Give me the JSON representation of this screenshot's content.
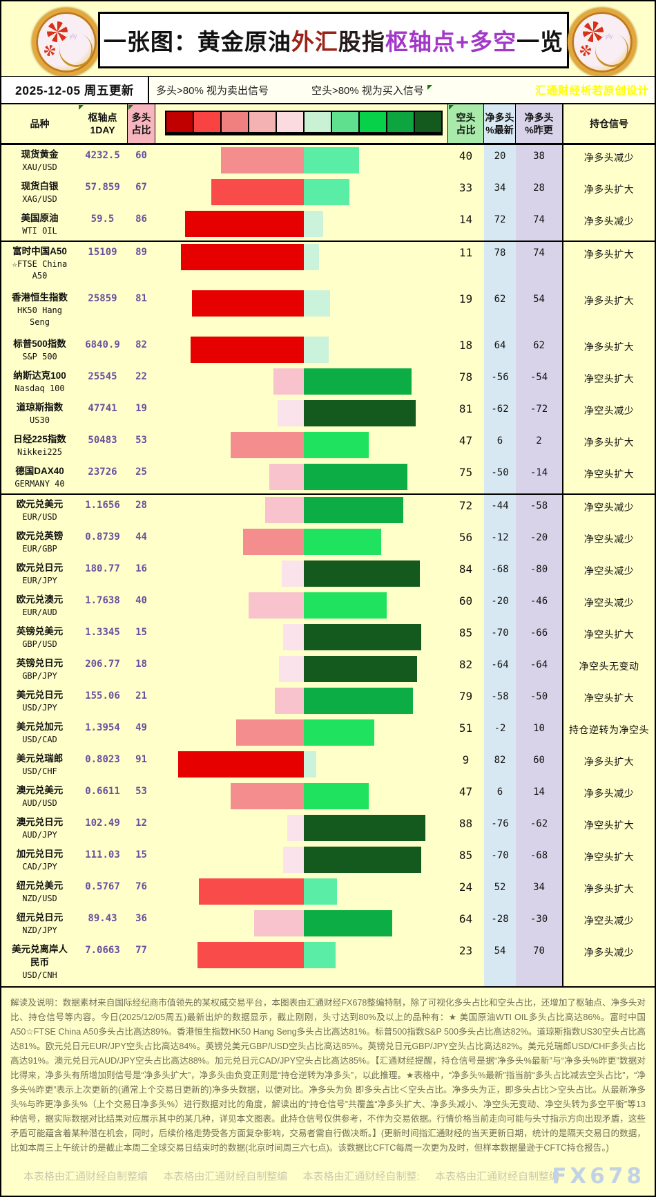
{
  "header": {
    "title_segments": [
      {
        "text": "一张图：黄金原油",
        "color": "#111111"
      },
      {
        "text": "外汇",
        "color": "#9B2217"
      },
      {
        "text": "股指",
        "color": "#241A1A"
      },
      {
        "text": "枢轴点+多空",
        "color": "#A238C8"
      },
      {
        "text": "一览",
        "color": "#111111"
      }
    ],
    "date_label": "2025-12-05 周五更新",
    "legend_sell": "多头>80% 视为卖出信号",
    "legend_buy": "空头>80% 视为买入信号",
    "brand": "汇通财经析若原创设计",
    "brand_color": "#FFFF00"
  },
  "table": {
    "columns": {
      "species": [
        "品种"
      ],
      "pivot": [
        "枢轴点",
        "1DAY"
      ],
      "long": [
        "多头",
        "占比"
      ],
      "short": [
        "空头",
        "占比"
      ],
      "net_latest": [
        "净多头",
        "%最新"
      ],
      "net_prev": [
        "净多头",
        "%昨更"
      ],
      "signal": [
        "持仓信号"
      ]
    }
  },
  "palette": {
    "legend_strip": [
      "#C00000",
      "#F94343",
      "#F08080",
      "#F4B2B2",
      "#FBDBDF",
      "#C9F2D4",
      "#5FE08E",
      "#06D148",
      "#0DA53F",
      "#14591E"
    ],
    "long_scale": [
      "#FBE3EC",
      "#F8C3CC",
      "#F48E8E",
      "#FA4B4B",
      "#E60000"
    ],
    "short_scale": [
      "#CBF2DA",
      "#59EDA6",
      "#1FE35F",
      "#0CAD45",
      "#14591E"
    ],
    "long_col_bg": "#F7B6BE",
    "short_col_bg": "#A9E9A9",
    "net_latest_bg": "#D8E8F2",
    "net_prev_bg": "#D9D3E9",
    "page_bg": "#FFFFC9",
    "value_text": "#6A50A0"
  },
  "chart_data": {
    "type": "bar",
    "subtype": "diverging-horizontal-table",
    "title": "一张图：黄金原油外汇股指枢轴点+多空一览",
    "note": "红条=多头占比(左), 绿条=空头占比(右), 条色深浅随占比分档; 多头>80%视为卖出信号, 空头>80%视为买入信号",
    "xlim_percent": [
      0,
      100
    ],
    "rows": [
      {
        "name_lines": [
          "现货黄金"
        ],
        "code_lines": [
          "XAU/USD"
        ],
        "pivot": "4232.5",
        "long": 60,
        "short": 40,
        "net_latest": "20",
        "net_prev": "38",
        "signal": "净多头减少",
        "tall": false,
        "group_start": false
      },
      {
        "name_lines": [
          "现货白银"
        ],
        "code_lines": [
          "XAG/USD"
        ],
        "pivot": "57.859",
        "long": 67,
        "short": 33,
        "net_latest": "34",
        "net_prev": "28",
        "signal": "净多头扩大",
        "tall": false,
        "group_start": false
      },
      {
        "name_lines": [
          "美国原油"
        ],
        "code_lines": [
          "WTI OIL"
        ],
        "pivot": "59.5",
        "long": 86,
        "short": 14,
        "net_latest": "72",
        "net_prev": "74",
        "signal": "净多头减少",
        "tall": false,
        "group_start": false
      },
      {
        "name_lines": [
          "富时中国A50"
        ],
        "code_lines": [
          "☆FTSE China",
          "A50"
        ],
        "pivot": "15109",
        "long": 89,
        "short": 11,
        "net_latest": "78",
        "net_prev": "74",
        "signal": "净多头扩大",
        "tall": true,
        "group_start": true
      },
      {
        "name_lines": [
          "香港恒生指数"
        ],
        "code_lines": [
          "HK50 Hang",
          "Seng"
        ],
        "pivot": "25859",
        "long": 81,
        "short": 19,
        "net_latest": "62",
        "net_prev": "54",
        "signal": "净多头扩大",
        "tall": true,
        "group_start": false
      },
      {
        "name_lines": [
          "标普500指数"
        ],
        "code_lines": [
          "S&P 500"
        ],
        "pivot": "6840.9",
        "long": 82,
        "short": 18,
        "net_latest": "64",
        "net_prev": "62",
        "signal": "净多头扩大",
        "tall": false,
        "group_start": false
      },
      {
        "name_lines": [
          "纳斯达克100"
        ],
        "code_lines": [
          "Nasdaq 100"
        ],
        "pivot": "25545",
        "long": 22,
        "short": 78,
        "net_latest": "-56",
        "net_prev": "-54",
        "signal": "净空头扩大",
        "tall": false,
        "group_start": false
      },
      {
        "name_lines": [
          "道琼斯指数"
        ],
        "code_lines": [
          "US30"
        ],
        "pivot": "47741",
        "long": 19,
        "short": 81,
        "net_latest": "-62",
        "net_prev": "-72",
        "signal": "净空头减少",
        "tall": false,
        "group_start": false
      },
      {
        "name_lines": [
          "日经225指数"
        ],
        "code_lines": [
          "Nikkei225"
        ],
        "pivot": "50483",
        "long": 53,
        "short": 47,
        "net_latest": "6",
        "net_prev": "2",
        "signal": "净多头扩大",
        "tall": false,
        "group_start": false
      },
      {
        "name_lines": [
          "德国DAX40"
        ],
        "code_lines": [
          "GERMANY 40"
        ],
        "pivot": "23726",
        "long": 25,
        "short": 75,
        "net_latest": "-50",
        "net_prev": "-14",
        "signal": "净空头扩大",
        "tall": false,
        "group_start": false
      },
      {
        "name_lines": [
          "欧元兑美元"
        ],
        "code_lines": [
          "EUR/USD"
        ],
        "pivot": "1.1656",
        "long": 28,
        "short": 72,
        "net_latest": "-44",
        "net_prev": "-58",
        "signal": "净空头减少",
        "tall": false,
        "group_start": true
      },
      {
        "name_lines": [
          "欧元兑英镑"
        ],
        "code_lines": [
          "EUR/GBP"
        ],
        "pivot": "0.8739",
        "long": 44,
        "short": 56,
        "net_latest": "-12",
        "net_prev": "-20",
        "signal": "净空头减少",
        "tall": false,
        "group_start": false
      },
      {
        "name_lines": [
          "欧元兑日元"
        ],
        "code_lines": [
          "EUR/JPY"
        ],
        "pivot": "180.77",
        "long": 16,
        "short": 84,
        "net_latest": "-68",
        "net_prev": "-80",
        "signal": "净空头减少",
        "tall": false,
        "group_start": false
      },
      {
        "name_lines": [
          "欧元兑澳元"
        ],
        "code_lines": [
          "EUR/AUD"
        ],
        "pivot": "1.7638",
        "long": 40,
        "short": 60,
        "net_latest": "-20",
        "net_prev": "-46",
        "signal": "净空头减少",
        "tall": false,
        "group_start": false
      },
      {
        "name_lines": [
          "英镑兑美元"
        ],
        "code_lines": [
          "GBP/USD"
        ],
        "pivot": "1.3345",
        "long": 15,
        "short": 85,
        "net_latest": "-70",
        "net_prev": "-66",
        "signal": "净空头扩大",
        "tall": false,
        "group_start": false
      },
      {
        "name_lines": [
          "英镑兑日元"
        ],
        "code_lines": [
          "GBP/JPY"
        ],
        "pivot": "206.77",
        "long": 18,
        "short": 82,
        "net_latest": "-64",
        "net_prev": "-64",
        "signal": "净空头无变动",
        "tall": false,
        "group_start": false
      },
      {
        "name_lines": [
          "美元兑日元"
        ],
        "code_lines": [
          "USD/JPY"
        ],
        "pivot": "155.06",
        "long": 21,
        "short": 79,
        "net_latest": "-58",
        "net_prev": "-50",
        "signal": "净空头扩大",
        "tall": false,
        "group_start": false
      },
      {
        "name_lines": [
          "美元兑加元"
        ],
        "code_lines": [
          "USD/CAD"
        ],
        "pivot": "1.3954",
        "long": 49,
        "short": 51,
        "net_latest": "-2",
        "net_prev": "10",
        "signal": "持仓逆转为净空头",
        "tall": false,
        "group_start": false
      },
      {
        "name_lines": [
          "美元兑瑞郎"
        ],
        "code_lines": [
          "USD/CHF"
        ],
        "pivot": "0.8023",
        "long": 91,
        "short": 9,
        "net_latest": "82",
        "net_prev": "60",
        "signal": "净多头扩大",
        "tall": false,
        "group_start": false
      },
      {
        "name_lines": [
          "澳元兑美元"
        ],
        "code_lines": [
          "AUD/USD"
        ],
        "pivot": "0.6611",
        "long": 53,
        "short": 47,
        "net_latest": "6",
        "net_prev": "14",
        "signal": "净多头减少",
        "tall": false,
        "group_start": false
      },
      {
        "name_lines": [
          "澳元兑日元"
        ],
        "code_lines": [
          "AUD/JPY"
        ],
        "pivot": "102.49",
        "long": 12,
        "short": 88,
        "net_latest": "-76",
        "net_prev": "-62",
        "signal": "净空头扩大",
        "tall": false,
        "group_start": false
      },
      {
        "name_lines": [
          "加元兑日元"
        ],
        "code_lines": [
          "CAD/JPY"
        ],
        "pivot": "111.03",
        "long": 15,
        "short": 85,
        "net_latest": "-70",
        "net_prev": "-68",
        "signal": "净空头扩大",
        "tall": false,
        "group_start": false
      },
      {
        "name_lines": [
          "纽元兑美元"
        ],
        "code_lines": [
          "NZD/USD"
        ],
        "pivot": "0.5767",
        "long": 76,
        "short": 24,
        "net_latest": "52",
        "net_prev": "34",
        "signal": "净多头扩大",
        "tall": false,
        "group_start": false
      },
      {
        "name_lines": [
          "纽元兑日元"
        ],
        "code_lines": [
          "NZD/JPY"
        ],
        "pivot": "89.43",
        "long": 36,
        "short": 64,
        "net_latest": "-28",
        "net_prev": "-30",
        "signal": "净空头减少",
        "tall": false,
        "group_start": false
      },
      {
        "name_lines": [
          "美元兑离岸人",
          "民币"
        ],
        "code_lines": [
          "USD/CNH"
        ],
        "pivot": "7.0663",
        "long": 77,
        "short": 23,
        "net_latest": "54",
        "net_prev": "70",
        "signal": "净多头减少",
        "tall": true,
        "group_start": false
      }
    ]
  },
  "footer": {
    "disclaimer": "解读及说明：数据素材来自国际经纪商市值领先的某权威交易平台，本图表由汇通财经FX678整编特制，除了可视化多头占比和空头占比，还增加了枢轴点、净多头对比、持仓信号等内容。今日(2025/12/05周五)最新出炉的数据显示，截止刚刚，头寸达到80%及以上的品种有：★ 美国原油WTI OIL多头占比高达86%。富时中国A50☆FTSE China A50多头占比高达89%。香港恒生指数HK50 Hang Seng多头占比高达81%。标普500指数S&P 500多头占比高达82%。道琼斯指数US30空头占比高达81%。欧元兑日元EUR/JPY空头占比高达84%。英镑兑美元GBP/USD空头占比高达85%。英镑兑日元GBP/JPY空头占比高达82%。美元兑瑞郎USD/CHF多头占比高达91%。澳元兑日元AUD/JPY空头占比高达88%。加元兑日元CAD/JPY空头占比高达85%。【汇通财经提醒，持仓信号是据“净多头%最新”与“净多头%昨更”数据对比得来，净多头有所增加则信号是“净多头扩大”，净多头由负变正则是“持仓逆转为净多头”，以此推理。★表格中，“净多头%最新”指当前“多头占比减去空头占比”，“净多头%昨更”表示上次更新的(通常上个交易日更新的)净多头数据，以便对比。净多头为负 即多头占比＜空头占比。净多头为正，即多头占比＞空头占比。从最新净多头%与昨更净多头%（上个交易日净多头%）进行数据对比的角度，解读出的“持仓信号”共覆盖“净多头扩大、净多头减小、净空头无变动、净空头转为多空平衡”等13种信号，据实际数据对比结果对应展示其中的某几种，详见本文图表。此持仓信号仅供参考，不作为交易依据。行情价格当前走向可能与头寸指示方向出现矛盾，这些矛盾可能蕴含着某种潜在机会，同时，后续价格走势受各方面复杂影响，交易者需自行做决断。】(更新时间指汇通财经的当天更新日期，统计的是隔天交易日的数据，比如本周三上午统计的是截止本周二全球交易日结束时的数据(北京时间周三六七点)。该数据比CFTC每周一次更为及时，但样本数据量逊于CFTC持仓报告。)",
    "watermarks": [
      "本表格由汇通财经自制整编",
      "本表格由汇通财经自制整编",
      "本表格由汇通财经自制整:",
      "本表格由汇通财经自制整编"
    ],
    "fx_watermark": "FX678",
    "logo_watermark": "fx678 yly"
  }
}
